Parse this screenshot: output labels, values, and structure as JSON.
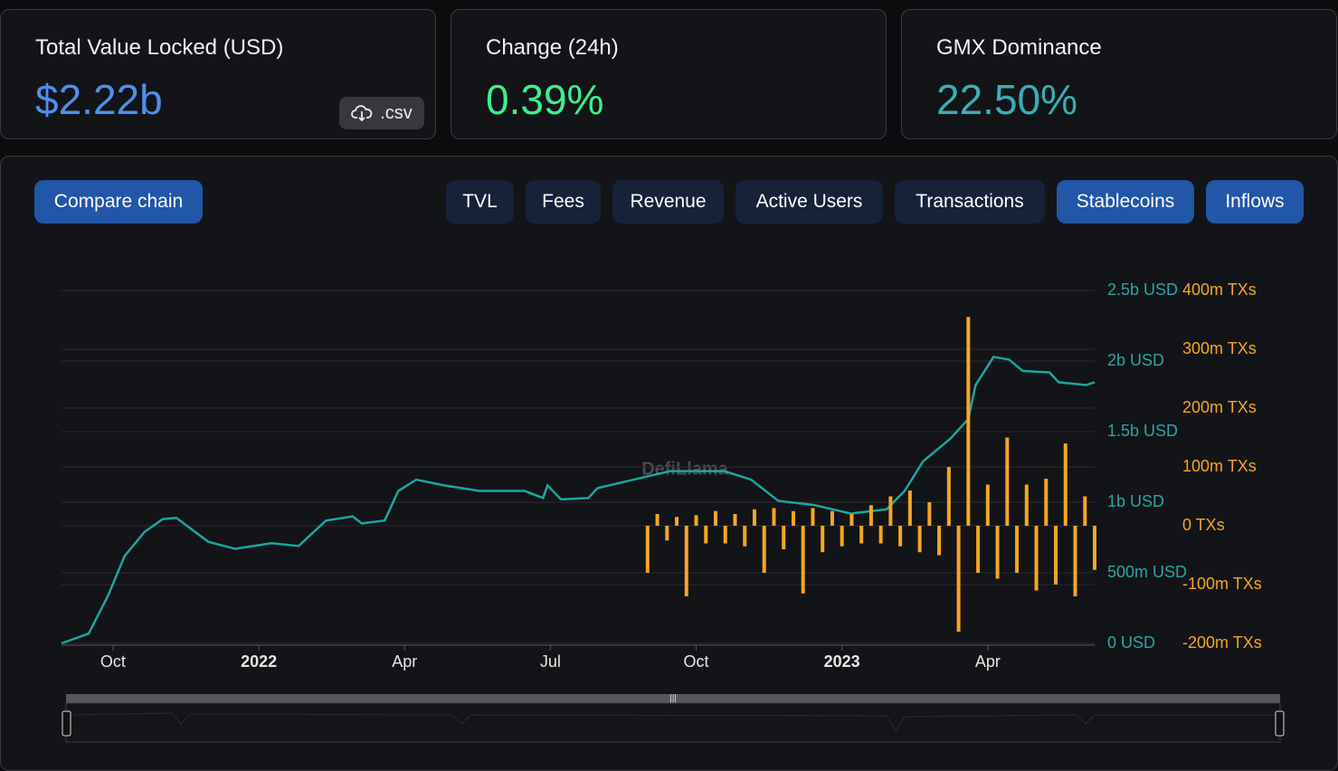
{
  "stats": [
    {
      "label": "Total Value Locked (USD)",
      "value": "$2.22b"
    },
    {
      "label": "Change (24h)",
      "value": "0.39%"
    },
    {
      "label": "GMX Dominance",
      "value": "22.50%"
    }
  ],
  "csv_button": ".csv",
  "compare_button": "Compare chain",
  "tabs": [
    "TVL",
    "Fees",
    "Revenue",
    "Active Users",
    "Transactions",
    "Stablecoins",
    "Inflows"
  ],
  "chart_data": {
    "type": "line",
    "watermark": "DefiLlama",
    "grid": true,
    "xlim": [
      -1.06,
      20.2
    ],
    "xticks": [
      {
        "value": 0,
        "label": "Oct"
      },
      {
        "value": 3,
        "label": "2022"
      },
      {
        "value": 6,
        "label": "Apr"
      },
      {
        "value": 9,
        "label": "Jul"
      },
      {
        "value": 12,
        "label": "Oct"
      },
      {
        "value": 15,
        "label": "2023"
      },
      {
        "value": 18,
        "label": "Apr"
      }
    ],
    "ylim": [
      0,
      2500000000
    ],
    "yticks": [
      {
        "value": 0,
        "label": "0 USD"
      },
      {
        "value": 500000000,
        "label": "500m USD"
      },
      {
        "value": 1000000000,
        "label": "1b USD"
      },
      {
        "value": 1500000000,
        "label": "1.5b USD"
      },
      {
        "value": 2000000000,
        "label": "2b USD"
      },
      {
        "value": 2500000000,
        "label": "2.5b USD"
      }
    ],
    "y2lim": [
      -200000000,
      400000000
    ],
    "y2ticks": [
      {
        "value": -200000000,
        "label": "-200m TXs"
      },
      {
        "value": -100000000,
        "label": "-100m TXs"
      },
      {
        "value": 0,
        "label": "0 TXs"
      },
      {
        "value": 100000000,
        "label": "100m TXs"
      },
      {
        "value": 200000000,
        "label": "200m TXs"
      },
      {
        "value": 300000000,
        "label": "300m TXs"
      },
      {
        "value": 400000000,
        "label": "400m TXs"
      }
    ],
    "series": [
      {
        "type": "line",
        "color": "#1aa7a0",
        "x": [
          -1.06,
          -0.5,
          -0.1,
          0.24,
          0.65,
          1.02,
          1.3,
          1.96,
          2.51,
          3.26,
          3.82,
          4.38,
          4.93,
          5.12,
          5.59,
          5.87,
          6.24,
          6.8,
          7.54,
          8.47,
          8.85,
          8.94,
          9.22,
          9.78,
          9.97,
          10.71,
          11.46,
          12.58,
          13.13,
          13.69,
          14.43,
          15.18,
          15.92,
          16.29,
          16.67,
          17.23,
          17.6,
          17.75,
          18.12,
          18.44,
          18.72,
          19.27,
          19.46,
          20.02,
          20.2
        ],
        "values": [
          0,
          70000000,
          340000000,
          620000000,
          790000000,
          880000000,
          890000000,
          720000000,
          670000000,
          710000000,
          690000000,
          870000000,
          900000000,
          850000000,
          870000000,
          1080000000,
          1160000000,
          1120000000,
          1080000000,
          1080000000,
          1030000000,
          1120000000,
          1020000000,
          1030000000,
          1100000000,
          1160000000,
          1220000000,
          1220000000,
          1160000000,
          1010000000,
          980000000,
          920000000,
          950000000,
          1080000000,
          1290000000,
          1450000000,
          1590000000,
          1830000000,
          2030000000,
          2010000000,
          1930000000,
          1920000000,
          1850000000,
          1830000000,
          1850000000
        ]
      },
      {
        "type": "bar",
        "axis": "y2",
        "color": "#f5a623",
        "x": [
          11.0,
          11.2,
          11.4,
          11.6,
          11.8,
          12.0,
          12.2,
          12.4,
          12.6,
          12.8,
          13.0,
          13.2,
          13.4,
          13.6,
          13.8,
          14.0,
          14.2,
          14.4,
          14.6,
          14.8,
          15.0,
          15.2,
          15.4,
          15.6,
          15.8,
          16.0,
          16.2,
          16.4,
          16.6,
          16.8,
          17.0,
          17.2,
          17.4,
          17.6,
          17.8,
          18.0,
          18.2,
          18.4,
          18.6,
          18.8,
          19.0,
          19.2,
          19.4,
          19.6,
          19.8,
          20.0,
          20.2
        ],
        "values": [
          -80000000,
          20000000,
          -25000000,
          15000000,
          -120000000,
          18000000,
          -30000000,
          25000000,
          -30000000,
          20000000,
          -35000000,
          28000000,
          -80000000,
          30000000,
          -40000000,
          25000000,
          -115000000,
          30000000,
          -45000000,
          25000000,
          -35000000,
          20000000,
          -30000000,
          35000000,
          -30000000,
          50000000,
          -35000000,
          60000000,
          -45000000,
          40000000,
          -50000000,
          100000000,
          -180000000,
          355000000,
          -80000000,
          70000000,
          -90000000,
          150000000,
          -80000000,
          70000000,
          -110000000,
          80000000,
          -100000000,
          140000000,
          -120000000,
          50000000,
          -75000000
        ]
      }
    ]
  }
}
